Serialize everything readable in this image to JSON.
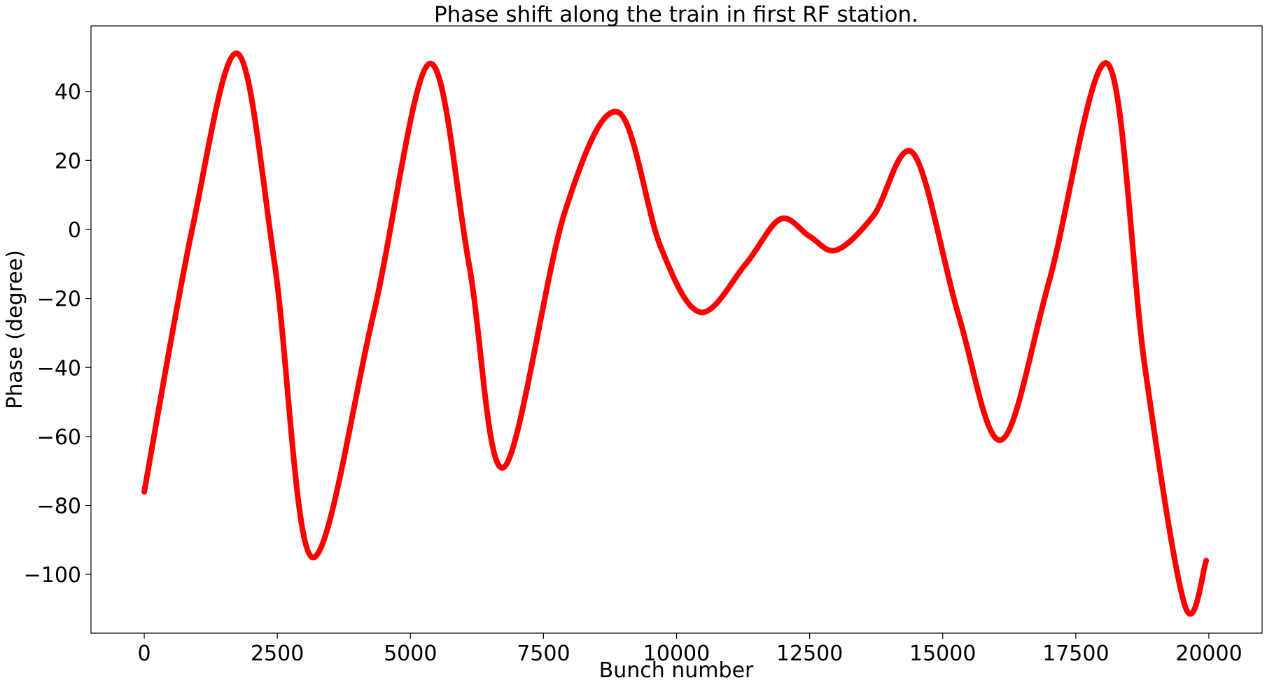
{
  "chart_data": {
    "type": "line",
    "title": "Phase shift along the train in first RF station.",
    "xlabel": "Bunch number",
    "ylabel": "Phase (degree)",
    "xlim": [
      -1000,
      21000
    ],
    "ylim": [
      -117,
      59
    ],
    "grid": false,
    "legend": "none",
    "x_ticks": [
      0,
      2500,
      5000,
      7500,
      10000,
      12500,
      15000,
      17500,
      20000
    ],
    "x_tick_labels": [
      "0",
      "2500",
      "5000",
      "7500",
      "10000",
      "12500",
      "15000",
      "17500",
      "20000"
    ],
    "y_ticks": [
      40,
      20,
      0,
      -20,
      -40,
      -60,
      -80,
      -100
    ],
    "y_tick_labels": [
      "40",
      "20",
      "0",
      "−20",
      "−40",
      "−60",
      "−80",
      "−100"
    ],
    "series": [
      {
        "color": "#ff0000",
        "x": [
          0,
          900,
          1750,
          2450,
          3150,
          4300,
          5350,
          6100,
          6750,
          7900,
          8900,
          9700,
          10450,
          11300,
          11950,
          12500,
          13000,
          13700,
          14450,
          15300,
          16100,
          17000,
          18100,
          18800,
          19550,
          19950
        ],
        "y": [
          -76,
          0,
          51,
          -10,
          -95,
          -25,
          48,
          -10,
          -69,
          5,
          34,
          -5,
          -24,
          -10,
          3,
          -2,
          -6,
          4,
          22,
          -25,
          -61,
          -15,
          48,
          -40,
          -109,
          -96
        ]
      }
    ]
  }
}
